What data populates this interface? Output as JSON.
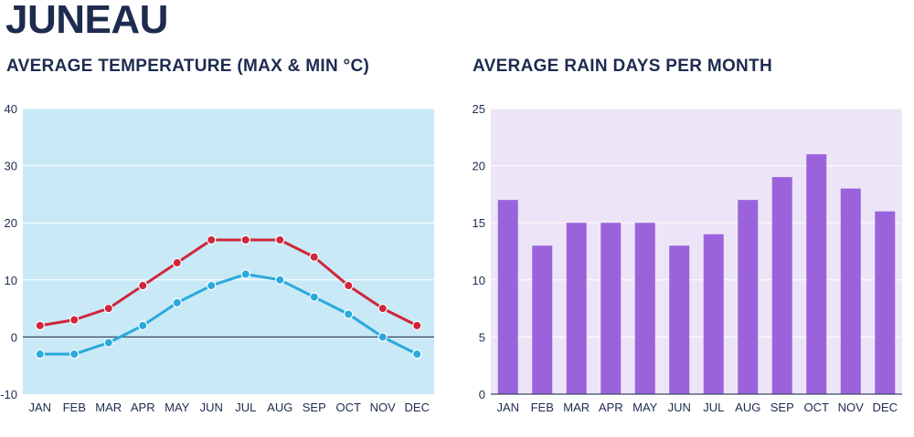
{
  "page": {
    "city": "JUNEAU"
  },
  "chart_data": [
    {
      "type": "line",
      "title": "AVERAGE TEMPERATURE (MAX & MIN °C)",
      "categories": [
        "JAN",
        "FEB",
        "MAR",
        "APR",
        "MAY",
        "JUN",
        "JUL",
        "AUG",
        "SEP",
        "OCT",
        "NOV",
        "DEC"
      ],
      "series": [
        {
          "name": "Max",
          "values": [
            2,
            3,
            5,
            9,
            13,
            17,
            17,
            17,
            14,
            9,
            5,
            2
          ]
        },
        {
          "name": "Min",
          "values": [
            -3,
            -3,
            -1,
            2,
            6,
            9,
            11,
            10,
            7,
            4,
            0,
            -3
          ]
        }
      ],
      "ylim": [
        -10,
        40
      ],
      "yticks": [
        -10,
        0,
        10,
        20,
        30,
        40
      ],
      "xlabel": "",
      "ylabel": "",
      "grid": true,
      "colors": {
        "background": "#c9e9f7",
        "max": "#d0263a",
        "min": "#2aa9dc",
        "zero_line": "#3a4766"
      }
    },
    {
      "type": "bar",
      "title": "AVERAGE RAIN DAYS PER MONTH",
      "categories": [
        "JAN",
        "FEB",
        "MAR",
        "APR",
        "MAY",
        "JUN",
        "JUL",
        "AUG",
        "SEP",
        "OCT",
        "NOV",
        "DEC"
      ],
      "values": [
        17,
        13,
        15,
        15,
        15,
        13,
        14,
        17,
        19,
        21,
        18,
        16
      ],
      "ylim": [
        0,
        25
      ],
      "yticks": [
        0,
        5,
        10,
        15,
        20,
        25
      ],
      "xlabel": "",
      "ylabel": "",
      "grid": true,
      "colors": {
        "background": "#ede5f7",
        "bar": "#9b63db",
        "axis": "#3a4766"
      }
    }
  ]
}
